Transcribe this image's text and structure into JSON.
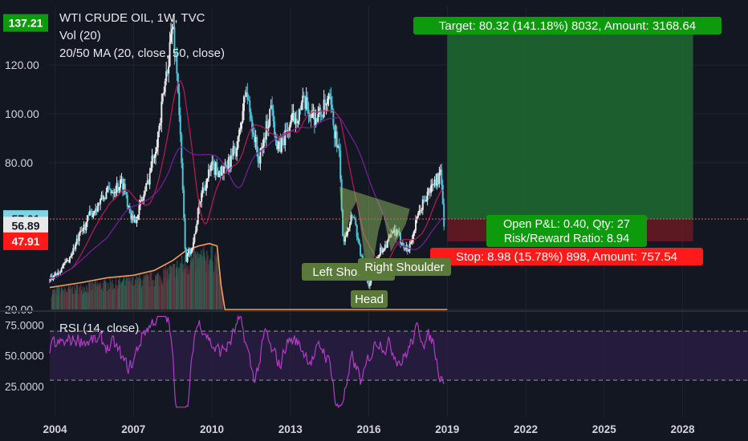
{
  "legend": {
    "title": "WTI CRUDE OIL, 1W, TVC",
    "volume": "Vol (20)",
    "ma": "20/50 MA (20, close, 50, close)"
  },
  "colors": {
    "background": "#131722",
    "candle_up": "#e8e8e8",
    "candle_down": "#4fc3d8",
    "ma_fast": "#c2185b",
    "ma_slow": "#7b1fa2",
    "volume_line": "#f39c5a",
    "target_zone": "#1e6b30",
    "stop_zone": "#6b1a22",
    "target_label": "#0d9a0d",
    "stop_label": "#ff1a1a",
    "entry_label": "#0d9a0d",
    "pattern_fill": "#9ccc65",
    "rsi": "#b23cc4",
    "rsi_band": "#2a1e45"
  },
  "price_badges": [
    {
      "value": "137.21",
      "price": 137.21,
      "bg": "#0d9a0d",
      "fg": "#ffffff"
    },
    {
      "value": "57.01",
      "price": 57.01,
      "bg": "#7fd3e6",
      "fg": "#131722"
    },
    {
      "value": "56.89",
      "price": 54.3,
      "bg": "#e8e8e8",
      "fg": "#131722"
    },
    {
      "value": "47.91",
      "price": 47.91,
      "bg": "#ff1a1a",
      "fg": "#ffffff"
    }
  ],
  "annotations": {
    "target": "Target: 80.32 (141.18%) 8032, Amount: 3168.64",
    "open_pl": "Open P&L: 0.40, Qty: 27",
    "risk_reward": "Risk/Reward Ratio: 8.94",
    "stop": "Stop: 8.98 (15.78%) 898, Amount: 757.54",
    "left_shoulder": "Left Shoulder",
    "head": "Head",
    "right_shoulder": "Right Shoulder"
  },
  "rsi_panel": {
    "title": "RSI (14, close)",
    "y_ticks": [
      "75.0000",
      "50.0000",
      "25.0000"
    ],
    "tick_values": [
      75,
      50,
      25
    ],
    "upper": 70,
    "lower": 30,
    "range": [
      0,
      85
    ]
  },
  "chart_data": {
    "type": "line",
    "title": "WTI CRUDE OIL, 1W, TVC",
    "x_ticks": [
      "2004",
      "2007",
      "2010",
      "2013",
      "2016",
      "2019",
      "2022",
      "2025",
      "2028"
    ],
    "y_ticks": [
      "120.00",
      "100.00",
      "80.00",
      "20.00"
    ],
    "y_tick_values": [
      120,
      100,
      80,
      20
    ],
    "ylim": [
      20,
      142
    ],
    "xlim": [
      2003.8,
      2030.5
    ],
    "series": [
      {
        "name": "WTI CRUDE OIL",
        "x": [
          2003.8,
          2004.5,
          2005.3,
          2006.0,
          2006.6,
          2007.0,
          2007.5,
          2008.0,
          2008.5,
          2008.7,
          2009.0,
          2009.3,
          2009.6,
          2010.0,
          2010.5,
          2011.0,
          2011.3,
          2011.8,
          2012.3,
          2012.5,
          2013.0,
          2013.5,
          2014.0,
          2014.5,
          2014.9,
          2015.0,
          2015.4,
          2015.7,
          2016.0,
          2016.3,
          2016.6,
          2017.0,
          2017.5,
          2018.0,
          2018.5,
          2018.75,
          2018.9
        ],
        "y": [
          32,
          40,
          58,
          68,
          72,
          55,
          70,
          95,
          137,
          112,
          40,
          48,
          68,
          78,
          76,
          88,
          110,
          80,
          105,
          84,
          96,
          104,
          98,
          105,
          80,
          48,
          60,
          42,
          30,
          42,
          46,
          52,
          44,
          62,
          72,
          75,
          52
        ]
      },
      {
        "name": "Volume",
        "x": [
          2003.8,
          2005.0,
          2006.0,
          2007.0,
          2007.8,
          2008.5,
          2009.0,
          2009.5,
          2009.9,
          2010.2,
          2010.35,
          2010.5,
          2019.0
        ],
        "y": [
          29,
          31,
          33,
          34,
          36,
          40,
          44,
          46,
          47,
          46,
          30,
          20,
          20
        ]
      }
    ]
  }
}
